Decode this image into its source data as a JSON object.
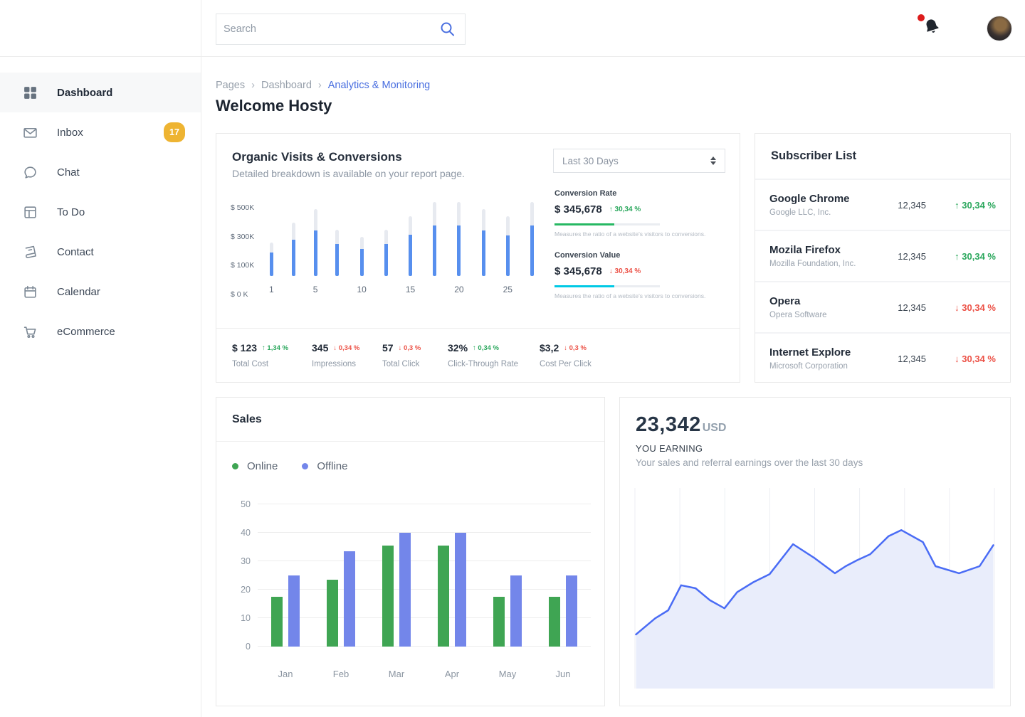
{
  "colors": {
    "accent_blue": "#4a6fe0",
    "bar_blue": "#578fee",
    "bar_gray": "#e7eaf0",
    "green": "#2aa75c",
    "red": "#ec5247",
    "badge_yellow": "#eeb432"
  },
  "sidebar": {
    "items": [
      {
        "label": "Dashboard",
        "icon": "grid-icon",
        "active": true
      },
      {
        "label": "Inbox",
        "icon": "envelope-icon",
        "badge": "17"
      },
      {
        "label": "Chat",
        "icon": "chat-bubble-icon"
      },
      {
        "label": "To Do",
        "icon": "todo-layout-icon"
      },
      {
        "label": "Contact",
        "icon": "contact-book-icon"
      },
      {
        "label": "Calendar",
        "icon": "calendar-icon"
      },
      {
        "label": "eCommerce",
        "icon": "cart-icon"
      }
    ]
  },
  "topbar": {
    "search_placeholder": "Search"
  },
  "breadcrumb": {
    "item1": "Pages",
    "item2": "Dashboard",
    "separator": "›",
    "current": "Analytics & Monitoring"
  },
  "page_title": "Welcome Hosty",
  "organic_card": {
    "title": "Organic Visits & Conversions",
    "subtitle": "Detailed breakdown is available on your report page.",
    "period_selector": "Last 30 Days",
    "conversion_rate": {
      "label": "Conversion Rate",
      "value": "$ 345,678",
      "delta": "30,34 %",
      "direction": "up",
      "progress_pct": 57,
      "bar_color": "#27b863",
      "caption": "Measures the ratio of a website's visitors to conversions."
    },
    "conversion_value": {
      "label": "Conversion Value",
      "value": "$ 345,678",
      "delta": "30,34 %",
      "direction": "down",
      "progress_pct": 57,
      "bar_color": "#00c9e5",
      "caption": "Measures the ratio of a website's visitors to conversions."
    },
    "stats": [
      {
        "value": "$ 123",
        "delta": "1,34 %",
        "direction": "up",
        "label": "Total Cost"
      },
      {
        "value": "345",
        "delta": "0,34 %",
        "direction": "down",
        "label": "Impressions"
      },
      {
        "value": "57",
        "delta": "0,3 %",
        "direction": "down",
        "label": "Total Click"
      },
      {
        "value": "32%",
        "delta": "0,34 %",
        "direction": "up",
        "label": "Click-Through Rate"
      },
      {
        "value": "$3,2",
        "delta": "0,3 %",
        "direction": "down",
        "label": "Cost Per Click"
      }
    ]
  },
  "subscriber_card": {
    "title": "Subscriber List",
    "rows": [
      {
        "name": "Google Chrome",
        "company": "Google LLC, Inc.",
        "count": "12,345",
        "delta": "30,34 %",
        "direction": "up"
      },
      {
        "name": "Mozila Firefox",
        "company": "Mozilla Foundation, Inc.",
        "count": "12,345",
        "delta": "30,34 %",
        "direction": "up"
      },
      {
        "name": "Opera",
        "company": "Opera Software",
        "count": "12,345",
        "delta": "30,34 %",
        "direction": "down"
      },
      {
        "name": "Internet Explore",
        "company": "Microsoft Corporation",
        "count": "12,345",
        "delta": "30,34 %",
        "direction": "down"
      }
    ]
  },
  "sales_card": {
    "title": "Sales",
    "legend": [
      {
        "label": "Online",
        "color": "#3fa553"
      },
      {
        "label": "Offline",
        "color": "#7386ea"
      }
    ]
  },
  "earning_card": {
    "amount": "23,342",
    "currency": "USD",
    "label": "YOU EARNING",
    "caption": "Your sales and referral earnings over the last 30 days"
  },
  "chart_data": [
    {
      "id": "organic-visits",
      "type": "bar",
      "title": "Organic Visits & Conversions",
      "x_labels": [
        "1",
        "",
        "5",
        "",
        "10",
        "",
        "15",
        "",
        "20",
        "",
        "25",
        ""
      ],
      "series": [
        {
          "name": "Total",
          "color": "#e7eaf0",
          "values": [
            225,
            355,
            450,
            310,
            260,
            310,
            400,
            495,
            495,
            450,
            400,
            495
          ]
        },
        {
          "name": "Visits",
          "color": "#578fee",
          "values": [
            155,
            245,
            305,
            215,
            180,
            215,
            275,
            340,
            340,
            305,
            270,
            340
          ]
        }
      ],
      "y_ticks": [
        "$ 500K",
        "$ 300K",
        "$ 100K",
        "$ 0 K"
      ],
      "ylim": [
        0,
        500
      ],
      "grid": false
    },
    {
      "id": "sales",
      "type": "bar",
      "title": "Sales",
      "categories": [
        "Jan",
        "Feb",
        "Mar",
        "Apr",
        "May",
        "Jun"
      ],
      "series": [
        {
          "name": "Online",
          "color": "#3fa553",
          "values": [
            17.5,
            23.5,
            35.5,
            35.5,
            17.5,
            17.5
          ]
        },
        {
          "name": "Offline",
          "color": "#7386ea",
          "values": [
            25,
            33.5,
            40,
            40,
            25,
            25
          ]
        }
      ],
      "y_ticks": [
        50,
        40,
        30,
        20,
        10,
        0
      ],
      "ylim": [
        0,
        50
      ],
      "grid": true,
      "legend_position": "top-left"
    },
    {
      "id": "earnings-trend",
      "type": "area",
      "title": "YOU EARNING (last 30 days)",
      "line_color": "#4a6cf5",
      "fill_color": "#e9edfb",
      "gridlines": 9,
      "ylim": [
        0,
        100
      ],
      "points_pct": [
        [
          0.5,
          27
        ],
        [
          5.8,
          35
        ],
        [
          9.4,
          39
        ],
        [
          13,
          51.5
        ],
        [
          17,
          50
        ],
        [
          21,
          44
        ],
        [
          25,
          40
        ],
        [
          28.5,
          48
        ],
        [
          33,
          53
        ],
        [
          37.5,
          57
        ],
        [
          44,
          72
        ],
        [
          50,
          65
        ],
        [
          55.6,
          57.5
        ],
        [
          58.6,
          61
        ],
        [
          61.8,
          64
        ],
        [
          65.4,
          67
        ],
        [
          70.5,
          76
        ],
        [
          74,
          79
        ],
        [
          80,
          73
        ],
        [
          83.5,
          61
        ],
        [
          90,
          57.5
        ],
        [
          95.7,
          61
        ],
        [
          99.5,
          71.5
        ]
      ]
    }
  ]
}
